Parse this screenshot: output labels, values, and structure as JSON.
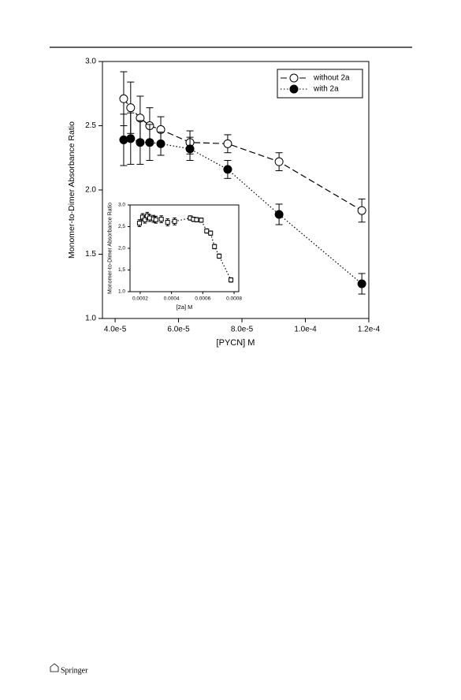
{
  "footer": "Springer",
  "chart_data": [
    {
      "type": "line",
      "x_label": "[PYCN] M",
      "y_label": "Monomer-to-Dimer Absorbance Ratio",
      "xlim": [
        3.6e-05,
        0.00012
      ],
      "ylim": [
        1.0,
        3.0
      ],
      "xticks": [
        {
          "value": 4e-05,
          "label": "4.0e-5"
        },
        {
          "value": 6e-05,
          "label": "6.0e-5"
        },
        {
          "value": 8e-05,
          "label": "8.0e-5"
        },
        {
          "value": 0.0001,
          "label": "1.0e-4"
        },
        {
          "value": 0.00012,
          "label": "1.2e-4"
        }
      ],
      "yticks": [
        {
          "value": 1.0,
          "label": "1.0"
        },
        {
          "value": 1.5,
          "label": "1.5"
        },
        {
          "value": 2.0,
          "label": "2.0"
        },
        {
          "value": 2.5,
          "label": "2.5"
        },
        {
          "value": 3.0,
          "label": "3.0"
        }
      ],
      "legend": "upper right",
      "x": [
        4.27e-05,
        4.49e-05,
        4.79e-05,
        5.09e-05,
        5.44e-05,
        6.36e-05,
        7.55e-05,
        9.17e-05,
        0.0001178
      ],
      "series": [
        {
          "name": "without 2a",
          "color": "#000000",
          "marker": "circle",
          "marker_fill": "#ffffff",
          "line_style": "dashed",
          "values": [
            2.71,
            2.64,
            2.56,
            2.5,
            2.47,
            2.37,
            2.36,
            2.22,
            1.84
          ],
          "errors": [
            0.21,
            0.2,
            0.17,
            0.14,
            0.1,
            0.09,
            0.07,
            0.07,
            0.09
          ]
        },
        {
          "name": "with 2a",
          "color": "#000000",
          "marker": "circle",
          "marker_fill": "#000000",
          "line_style": "dotted",
          "values": [
            2.39,
            2.4,
            2.37,
            2.37,
            2.36,
            2.32,
            2.16,
            1.81,
            1.27
          ],
          "errors": [
            0.2,
            0.2,
            0.17,
            0.14,
            0.09,
            0.09,
            0.07,
            0.08,
            0.08
          ]
        }
      ]
    },
    {
      "type": "line",
      "x_label": "[2a] M",
      "y_label": "Monomer-to-Dimer Absorbance Ratio",
      "xlim": [
        0.000135,
        0.00083
      ],
      "ylim": [
        1.0,
        3.0
      ],
      "xticks": [
        0.0002,
        0.0004,
        0.0006,
        0.0008
      ],
      "yticks": [
        {
          "value": 1.0,
          "label": "1.0"
        },
        {
          "value": 1.5,
          "label": "1,5"
        },
        {
          "value": 2.0,
          "label": "2,0"
        },
        {
          "value": 2.5,
          "label": "2,5"
        },
        {
          "value": 3.0,
          "label": "3.0"
        }
      ],
      "x": [
        0.000195,
        0.000215,
        0.00023,
        0.000245,
        0.00026,
        0.000285,
        0.0003,
        0.000335,
        0.000375,
        0.00042,
        0.00052,
        0.00054,
        0.00056,
        0.00059,
        0.000625,
        0.00065,
        0.000675,
        0.000705,
        0.00078
      ],
      "series": [
        {
          "color": "#000000",
          "marker": "square",
          "marker_fill": "#ffffff",
          "line_style": "dotted",
          "values": [
            2.58,
            2.72,
            2.66,
            2.75,
            2.7,
            2.68,
            2.66,
            2.67,
            2.6,
            2.62,
            2.7,
            2.67,
            2.66,
            2.65,
            2.4,
            2.35,
            2.04,
            1.82,
            1.27
          ],
          "errors": [
            0.08,
            0.08,
            0.08,
            0.08,
            0.08,
            0.08,
            0.08,
            0.08,
            0.08,
            0.08,
            0.05,
            0.05,
            0.05,
            0.05,
            0.05,
            0.05,
            0.05,
            0.05,
            0.05
          ]
        }
      ]
    }
  ]
}
